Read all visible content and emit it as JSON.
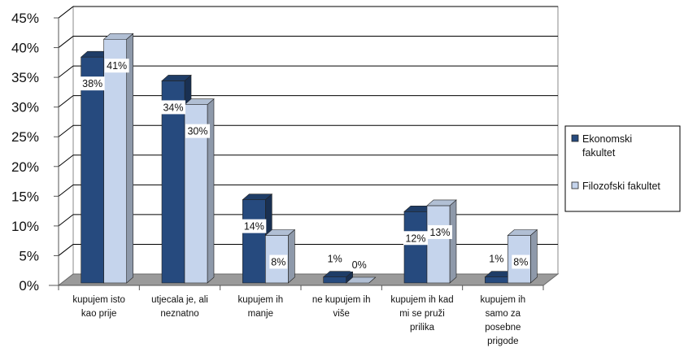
{
  "chart_data": {
    "type": "bar",
    "categories": [
      [
        "kupujem isto",
        "kao prije"
      ],
      [
        "utjecala je, ali",
        "neznatno"
      ],
      [
        "kupujem ih",
        "manje"
      ],
      [
        "ne kupujem ih",
        "više"
      ],
      [
        "kupujem ih kad",
        "mi se pruži",
        "prilika"
      ],
      [
        "kupujem ih",
        "samo za",
        "posebne",
        "prigode"
      ]
    ],
    "series": [
      {
        "name": "Ekonomski fakultet",
        "legend_lines": [
          "Ekonomski",
          "fakultet"
        ],
        "values": [
          38,
          34,
          14,
          1,
          12,
          1
        ],
        "labels": [
          "38%",
          "34%",
          "14%",
          "1%",
          "12%",
          "1%"
        ],
        "color": "#264a7e"
      },
      {
        "name": "Filozofski fakultet",
        "legend_lines": [
          "Filozofski fakultet"
        ],
        "values": [
          41,
          30,
          8,
          0,
          13,
          8
        ],
        "labels": [
          "41%",
          "30%",
          "8%",
          "0%",
          "13%",
          "8%"
        ],
        "color": "#c5d4ec"
      }
    ],
    "y_ticks": [
      "0%",
      "5%",
      "10%",
      "15%",
      "20%",
      "25%",
      "30%",
      "35%",
      "40%",
      "45%"
    ],
    "ylim": [
      0,
      45
    ],
    "grid": true,
    "legend": "right",
    "title": "",
    "xlabel": "",
    "ylabel": ""
  }
}
